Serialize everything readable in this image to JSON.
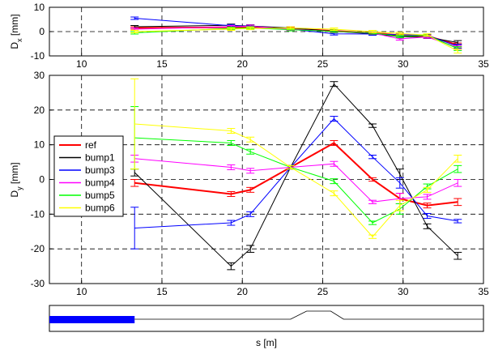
{
  "chart_data": [
    {
      "type": "line",
      "panel": "top",
      "xlabel": "",
      "ylabel": "D",
      "ylabel_sub": "x",
      "ylabel_unit": " [mm]",
      "xlim": [
        8,
        35
      ],
      "ylim": [
        -10,
        10
      ],
      "xticks": [
        10,
        15,
        20,
        25,
        30,
        35
      ],
      "yticks": [
        -10,
        0,
        10
      ],
      "grid": true,
      "x": [
        13.3,
        19.3,
        20.5,
        23.0,
        25.7,
        28.1,
        29.8,
        31.5,
        33.4
      ],
      "series": [
        {
          "name": "ref",
          "color": "#ff0000",
          "values": [
            1.5,
            1.8,
            1.7,
            1.2,
            0.3,
            -0.6,
            -1.5,
            -1.8,
            -5.5
          ],
          "err": [
            0.5,
            0.5,
            0.5,
            0.5,
            0.5,
            0.5,
            0.5,
            0.5,
            0.8
          ]
        },
        {
          "name": "bump1",
          "color": "#000000",
          "values": [
            2.0,
            2.6,
            2.3,
            1.5,
            0.1,
            -0.9,
            -2.1,
            -2.3,
            -4.5
          ],
          "err": [
            0.5,
            0.5,
            0.5,
            0.5,
            0.5,
            0.5,
            0.5,
            0.5,
            0.8
          ]
        },
        {
          "name": "bump3",
          "color": "#0000ff",
          "values": [
            5.5,
            2.4,
            2.2,
            1.0,
            -0.9,
            -1.0,
            -1.3,
            -1.6,
            -6.0
          ],
          "err": [
            0.5,
            0.5,
            0.5,
            0.5,
            0.5,
            0.5,
            0.5,
            0.5,
            0.8
          ]
        },
        {
          "name": "bump4",
          "color": "#ff00ff",
          "values": [
            1.0,
            2.0,
            2.2,
            1.0,
            0.0,
            -0.6,
            -3.0,
            -2.2,
            -6.5
          ],
          "err": [
            0.5,
            0.5,
            0.5,
            0.5,
            0.5,
            0.5,
            0.5,
            0.5,
            0.8
          ]
        },
        {
          "name": "bump5",
          "color": "#00ff00",
          "values": [
            -0.5,
            1.3,
            1.5,
            0.8,
            0.1,
            -0.5,
            -2.0,
            -1.5,
            -7.0
          ],
          "err": [
            0.5,
            0.5,
            0.5,
            0.5,
            0.5,
            0.5,
            0.5,
            0.5,
            0.8
          ]
        },
        {
          "name": "bump6",
          "color": "#ffff00",
          "values": [
            0.0,
            1.0,
            1.3,
            1.5,
            1.0,
            0.0,
            -0.8,
            -1.4,
            -8.0
          ],
          "err": [
            0.5,
            0.5,
            0.5,
            0.5,
            0.5,
            0.5,
            0.5,
            0.5,
            0.8
          ]
        }
      ]
    },
    {
      "type": "line",
      "panel": "main",
      "xlabel": "",
      "ylabel": "D",
      "ylabel_sub": "y",
      "ylabel_unit": " [mm]",
      "xlim": [
        8,
        35
      ],
      "ylim": [
        -30,
        30
      ],
      "xticks": [
        10,
        15,
        20,
        25,
        30,
        35
      ],
      "yticks": [
        -30,
        -20,
        -10,
        0,
        10,
        20,
        30
      ],
      "grid": true,
      "legend": "left",
      "x": [
        13.3,
        19.3,
        20.5,
        23.0,
        25.7,
        28.1,
        29.8,
        31.5,
        33.4
      ],
      "series": [
        {
          "name": "ref",
          "color": "#ff0000",
          "values": [
            -1.0,
            -4.2,
            -3.0,
            3.5,
            10.5,
            0.0,
            -5.5,
            -7.5,
            -6.5
          ],
          "err": [
            1.0,
            0.7,
            0.7,
            0.5,
            0.7,
            0.5,
            1.5,
            0.7,
            1.0
          ]
        },
        {
          "name": "bump1",
          "color": "#000000",
          "values": [
            2.0,
            -25.0,
            -20.0,
            3.5,
            27.5,
            15.5,
            1.5,
            -13.5,
            -22.0
          ],
          "err": [
            1.0,
            1.0,
            1.0,
            0.5,
            0.7,
            0.5,
            1.5,
            0.7,
            1.0
          ]
        },
        {
          "name": "bump3",
          "color": "#0000ff",
          "values": [
            -14.0,
            -12.5,
            -10.0,
            3.5,
            17.5,
            6.5,
            -1.0,
            -10.5,
            -12.0
          ],
          "err": [
            6.0,
            0.7,
            0.7,
            0.5,
            0.7,
            0.5,
            1.5,
            0.7,
            0.5
          ]
        },
        {
          "name": "bump4",
          "color": "#ff00ff",
          "values": [
            6.0,
            3.5,
            2.5,
            3.5,
            4.5,
            -6.5,
            -5.5,
            -5.0,
            -1.0
          ],
          "err": [
            1.0,
            0.7,
            0.7,
            0.5,
            0.7,
            0.5,
            1.5,
            0.7,
            1.0
          ]
        },
        {
          "name": "bump5",
          "color": "#00ff00",
          "values": [
            12.0,
            10.5,
            8.0,
            3.5,
            -0.5,
            -12.5,
            -8.5,
            -2.0,
            3.0
          ],
          "err": [
            9.0,
            0.7,
            0.7,
            0.5,
            0.7,
            0.5,
            1.5,
            0.7,
            1.0
          ]
        },
        {
          "name": "bump6",
          "color": "#ffff00",
          "values": [
            16.0,
            14.0,
            11.5,
            3.5,
            -4.0,
            -16.5,
            -7.5,
            -3.0,
            6.0
          ],
          "err": [
            13.0,
            0.7,
            0.7,
            0.5,
            0.7,
            0.5,
            1.5,
            0.7,
            1.0
          ]
        }
      ]
    }
  ],
  "beamline": {
    "xlabel": "s [m]",
    "block_x": [
      8,
      13.3
    ],
    "block_color": "#0000ff",
    "profile_x": [
      8,
      23.0,
      24.0,
      25.5,
      26.3,
      35
    ],
    "profile_level": [
      0,
      0,
      1,
      1,
      0,
      0
    ]
  },
  "colors": {
    "axis": "#000000",
    "grid": "#000000",
    "background": "#ffffff"
  }
}
